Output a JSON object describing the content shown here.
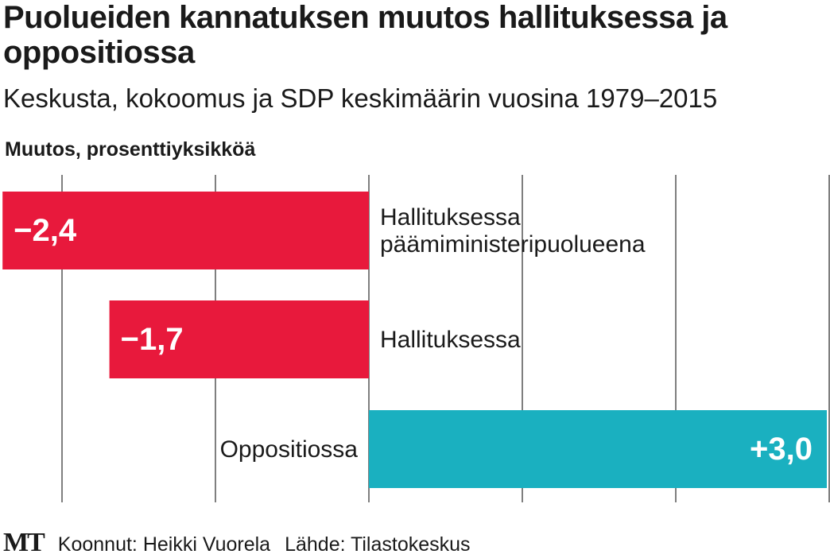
{
  "chart_data": {
    "type": "bar",
    "orientation": "horizontal",
    "title": "Puolueiden kannatuksen muutos hallituksessa ja oppositiossa",
    "subtitle": "Keskusta, kokoomus ja SDP keskimäärin vuosina 1979–2015",
    "xlabel": "Muutos, prosenttiyksikköä",
    "xlim": [
      -2.4,
      3.0
    ],
    "grid": true,
    "categories": [
      "Hallituksessa\npäämiministeripuolueena",
      "Hallituksessa",
      "Oppositiossa"
    ],
    "values": [
      -2.4,
      -1.7,
      3.0
    ],
    "data_labels": [
      "−2,4",
      "−1,7",
      "+3,0"
    ],
    "colors": {
      "negative": "#e8193c",
      "positive": "#1ab0c0"
    }
  },
  "footer": {
    "logo": "MT",
    "credit": "Koonnut: Heikki Vuorela",
    "source": "Lähde: Tilastokeskus"
  }
}
